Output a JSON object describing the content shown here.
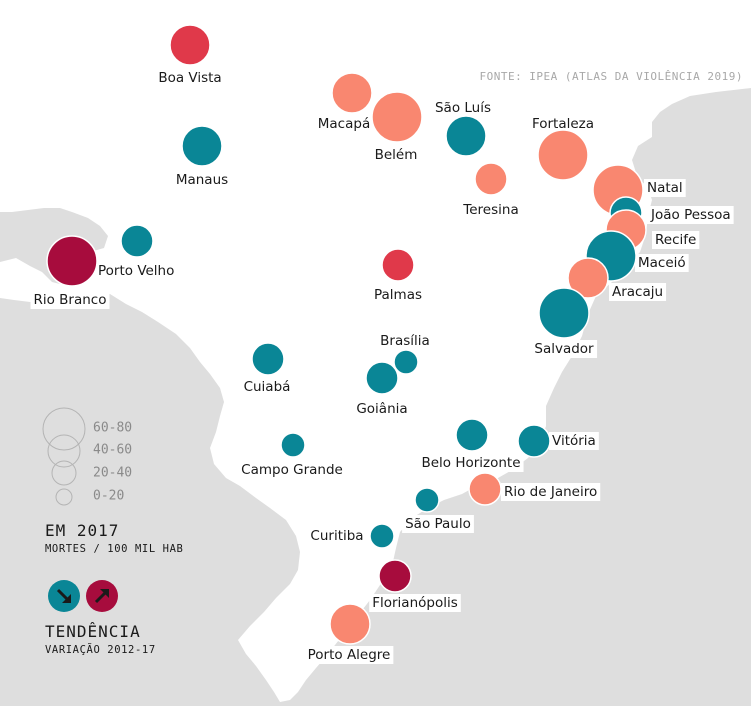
{
  "source": "FONTE: IPEA (ATLAS DA VIOLÊNCIA 2019)",
  "colors": {
    "falling": "#0a8696",
    "rising_low": "#f98770",
    "rising_mid": "#e0394a",
    "rising_high": "#a70c3d",
    "land": "#ffffff",
    "neighbors": "#dedede",
    "marker_stroke": "#ffffff"
  },
  "legend": {
    "size_classes": [
      "60-80",
      "40-60",
      "20-40",
      "0-20"
    ],
    "size_title": "EM 2017",
    "size_subtitle": "MORTES / 100 MIL HAB",
    "trend_icons": [
      {
        "name": "arrow-down-right-icon",
        "color": "falling"
      },
      {
        "name": "arrow-up-right-icon",
        "color": "rising_high"
      }
    ],
    "trend_title": "TENDÊNCIA",
    "trend_subtitle": "VARIAÇÃO 2012-17"
  },
  "cities": [
    {
      "name": "Boa Vista",
      "size_class": "40-60",
      "trend": "rising_mid"
    },
    {
      "name": "Macapá",
      "size_class": "40-60",
      "trend": "rising_low"
    },
    {
      "name": "Belém",
      "size_class": "60-80",
      "trend": "rising_low"
    },
    {
      "name": "São Luís",
      "size_class": "40-60",
      "trend": "falling"
    },
    {
      "name": "Fortaleza",
      "size_class": "60-80",
      "trend": "rising_low"
    },
    {
      "name": "Manaus",
      "size_class": "40-60",
      "trend": "falling"
    },
    {
      "name": "Teresina",
      "size_class": "20-40",
      "trend": "rising_low"
    },
    {
      "name": "Natal",
      "size_class": "60-80",
      "trend": "rising_low"
    },
    {
      "name": "João Pessoa",
      "size_class": "20-40",
      "trend": "falling"
    },
    {
      "name": "Recife",
      "size_class": "40-60",
      "trend": "rising_low"
    },
    {
      "name": "Maceió",
      "size_class": "60-80",
      "trend": "falling"
    },
    {
      "name": "Aracaju",
      "size_class": "40-60",
      "trend": "rising_low"
    },
    {
      "name": "Porto Velho",
      "size_class": "20-40",
      "trend": "falling"
    },
    {
      "name": "Rio Branco",
      "size_class": "60-80",
      "trend": "rising_high"
    },
    {
      "name": "Palmas",
      "size_class": "20-40",
      "trend": "rising_mid"
    },
    {
      "name": "Salvador",
      "size_class": "60-80",
      "trend": "falling"
    },
    {
      "name": "Brasília",
      "size_class": "0-20",
      "trend": "falling"
    },
    {
      "name": "Goiânia",
      "size_class": "20-40",
      "trend": "falling"
    },
    {
      "name": "Cuiabá",
      "size_class": "20-40",
      "trend": "falling"
    },
    {
      "name": "Belo Horizonte",
      "size_class": "20-40",
      "trend": "falling"
    },
    {
      "name": "Vitória",
      "size_class": "20-40",
      "trend": "falling"
    },
    {
      "name": "Campo Grande",
      "size_class": "0-20",
      "trend": "falling"
    },
    {
      "name": "Rio de Janeiro",
      "size_class": "20-40",
      "trend": "rising_low"
    },
    {
      "name": "São Paulo",
      "size_class": "0-20",
      "trend": "falling"
    },
    {
      "name": "Curitiba",
      "size_class": "0-20",
      "trend": "falling"
    },
    {
      "name": "Florianópolis",
      "size_class": "20-40",
      "trend": "rising_high"
    },
    {
      "name": "Porto Alegre",
      "size_class": "40-60",
      "trend": "rising_low"
    }
  ]
}
